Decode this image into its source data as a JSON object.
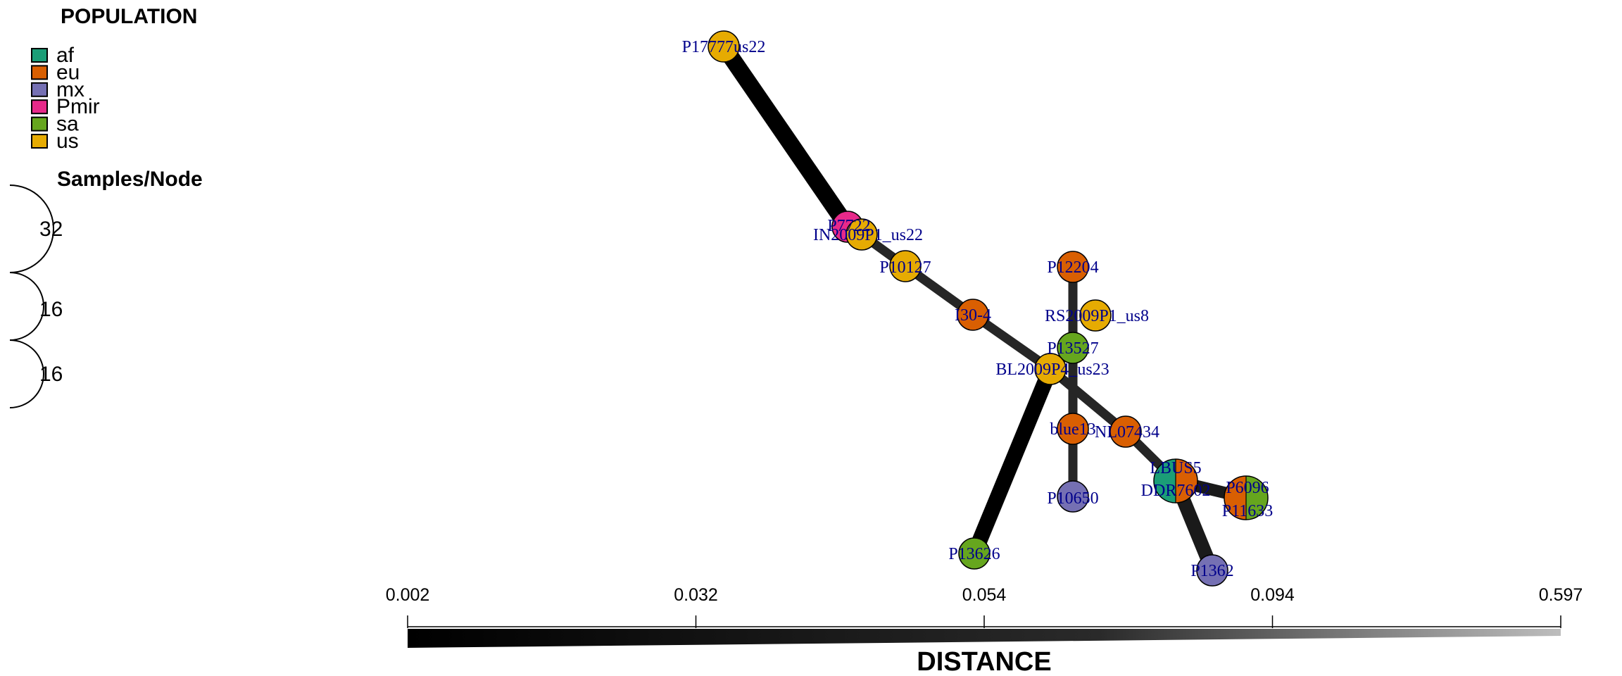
{
  "legend": {
    "title": "POPULATION",
    "items": [
      {
        "label": "af",
        "color": "#1B9E77"
      },
      {
        "label": "eu",
        "color": "#D95F02"
      },
      {
        "label": "mx",
        "color": "#7570B3"
      },
      {
        "label": "Pmir",
        "color": "#E7298A"
      },
      {
        "label": "sa",
        "color": "#66A61E"
      },
      {
        "label": "us",
        "color": "#E6AB02"
      }
    ]
  },
  "size_legend": {
    "title": "Samples/Node",
    "values": [
      "32",
      "16",
      "16"
    ]
  },
  "distance_axis": {
    "title": "DISTANCE",
    "ticks": [
      "0.002",
      "0.032",
      "0.054",
      "0.094",
      "0.597"
    ]
  },
  "nodes": [
    {
      "id": "P17777us22",
      "label": "P17777us22",
      "pops": [
        "us"
      ]
    },
    {
      "id": "P7722",
      "label": "P7722",
      "pops": [
        "Pmir"
      ]
    },
    {
      "id": "IN2009P1_us22",
      "label": "IN2009P1_us22",
      "pops": [
        "us"
      ]
    },
    {
      "id": "P10127",
      "label": "P10127",
      "pops": [
        "us"
      ]
    },
    {
      "id": "I30-4",
      "label": "I30-4",
      "pops": [
        "eu"
      ]
    },
    {
      "id": "P12204",
      "label": "P12204",
      "pops": [
        "eu"
      ]
    },
    {
      "id": "RS2009P1_us8",
      "label": "RS2009P1_us8",
      "pops": [
        "us"
      ]
    },
    {
      "id": "P13527",
      "label": "P13527",
      "pops": [
        "sa"
      ]
    },
    {
      "id": "BL2009P4_us23",
      "label": "BL2009P4_us23",
      "pops": [
        "us"
      ]
    },
    {
      "id": "blue13",
      "label": "blue13",
      "pops": [
        "eu"
      ]
    },
    {
      "id": "NL07434",
      "label": "NL07434",
      "pops": [
        "eu"
      ]
    },
    {
      "id": "LBUS5_DDR7602",
      "label": "LBUS5",
      "label2": "DDR7602",
      "pops": [
        "af",
        "eu"
      ]
    },
    {
      "id": "P6096_P11633",
      "label": "P6096",
      "label2": "P11633",
      "pops": [
        "eu",
        "sa"
      ]
    },
    {
      "id": "P10650",
      "label": "P10650",
      "pops": [
        "mx"
      ]
    },
    {
      "id": "P13626",
      "label": "P13626",
      "pops": [
        "sa"
      ]
    },
    {
      "id": "P1362",
      "label": "P1362",
      "pops": [
        "mx"
      ]
    }
  ],
  "edges": [
    {
      "from": "P17777us22",
      "to": "P7722",
      "distance": 0.002
    },
    {
      "from": "P7722",
      "to": "IN2009P1_us22",
      "distance": 0.05
    },
    {
      "from": "IN2009P1_us22",
      "to": "P10127",
      "distance": 0.06
    },
    {
      "from": "P10127",
      "to": "I30-4",
      "distance": 0.06
    },
    {
      "from": "I30-4",
      "to": "BL2009P4_us23",
      "distance": 0.06
    },
    {
      "from": "BL2009P4_us23",
      "to": "P13527",
      "distance": 0.06
    },
    {
      "from": "P13527",
      "to": "P12204",
      "distance": 0.06
    },
    {
      "from": "P13527",
      "to": "blue13",
      "distance": 0.06
    },
    {
      "from": "blue13",
      "to": "P10650",
      "distance": 0.06
    },
    {
      "from": "BL2009P4_us23",
      "to": "NL07434",
      "distance": 0.06
    },
    {
      "from": "NL07434",
      "to": "LBUS5_DDR7602",
      "distance": 0.06
    },
    {
      "from": "LBUS5_DDR7602",
      "to": "P6096_P11633",
      "distance": 0.03
    },
    {
      "from": "LBUS5_DDR7602",
      "to": "P1362",
      "distance": 0.02
    },
    {
      "from": "BL2009P4_us23",
      "to": "P13626",
      "distance": 0.005
    }
  ]
}
